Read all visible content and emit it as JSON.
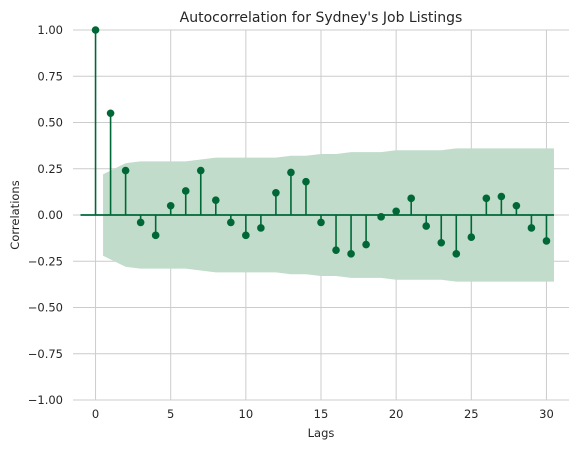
{
  "chart_data": {
    "type": "stem",
    "title": "Autocorrelation for Sydney's Job Listings",
    "xlabel": "Lags",
    "ylabel": "Correlations",
    "xlim": [
      -1.5,
      31.5
    ],
    "ylim": [
      -1.0,
      1.0
    ],
    "xticks": [
      0,
      5,
      10,
      15,
      20,
      25,
      30
    ],
    "yticks": [
      -1.0,
      -0.75,
      -0.5,
      -0.25,
      0.0,
      0.25,
      0.5,
      0.75,
      1.0
    ],
    "ytick_labels": [
      "−1.00",
      "−0.75",
      "−0.50",
      "−0.25",
      "0.00",
      "0.25",
      "0.50",
      "0.75",
      "1.00"
    ],
    "xtick_labels": [
      "0",
      "5",
      "10",
      "15",
      "20",
      "25",
      "30"
    ],
    "grid": true,
    "colors": {
      "stem": "#006837",
      "band": "#c1dcca",
      "grid": "#cccccc"
    },
    "lags": [
      0,
      1,
      2,
      3,
      4,
      5,
      6,
      7,
      8,
      9,
      10,
      11,
      12,
      13,
      14,
      15,
      16,
      17,
      18,
      19,
      20,
      21,
      22,
      23,
      24,
      25,
      26,
      27,
      28,
      29,
      30
    ],
    "values": [
      1.0,
      0.55,
      0.24,
      -0.04,
      -0.11,
      0.05,
      0.13,
      0.24,
      0.08,
      -0.04,
      -0.11,
      -0.07,
      0.12,
      0.23,
      0.18,
      -0.04,
      -0.19,
      -0.21,
      -0.16,
      -0.01,
      0.02,
      0.09,
      -0.06,
      -0.15,
      -0.21,
      -0.12,
      0.09,
      0.1,
      0.05,
      -0.07,
      -0.14
    ],
    "confidence_band": {
      "lags": [
        0.5,
        1.5,
        2,
        3,
        4,
        5,
        6,
        7,
        8,
        9,
        10,
        11,
        12,
        13,
        14,
        15,
        16,
        17,
        18,
        19,
        20,
        21,
        22,
        23,
        24,
        25,
        26,
        27,
        28,
        29,
        30,
        30.5
      ],
      "upper": [
        0.22,
        0.26,
        0.28,
        0.29,
        0.29,
        0.29,
        0.29,
        0.3,
        0.31,
        0.31,
        0.31,
        0.31,
        0.31,
        0.32,
        0.32,
        0.33,
        0.33,
        0.34,
        0.34,
        0.34,
        0.35,
        0.35,
        0.35,
        0.35,
        0.36,
        0.36,
        0.36,
        0.36,
        0.36,
        0.36,
        0.36,
        0.36
      ]
    }
  }
}
